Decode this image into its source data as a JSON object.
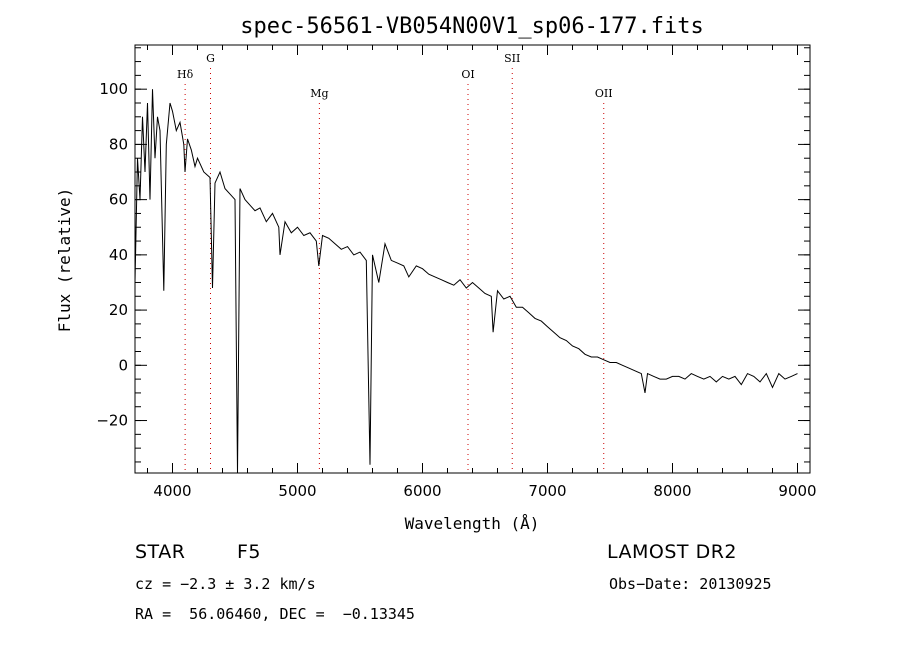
{
  "chart_data": {
    "type": "line",
    "title": "spec-56561-VB054N00V1_sp06-177.fits",
    "xlabel": "Wavelength (Å)",
    "ylabel": "Flux (relative)",
    "xlim": [
      3700,
      9100
    ],
    "ylim": [
      -39,
      116
    ],
    "x_ticks": [
      4000,
      5000,
      6000,
      7000,
      8000,
      9000
    ],
    "y_ticks": [
      -20,
      0,
      20,
      40,
      60,
      80,
      100
    ],
    "grid": false,
    "series": [
      {
        "x": [
          3700,
          3720,
          3740,
          3760,
          3780,
          3800,
          3820,
          3840,
          3860,
          3880,
          3900,
          3930,
          3950,
          3980,
          4000,
          4030,
          4060,
          4090,
          4100,
          4120,
          4150,
          4180,
          4200,
          4250,
          4300,
          4320,
          4340,
          4380,
          4420,
          4460,
          4500,
          4520,
          4540,
          4580,
          4620,
          4660,
          4700,
          4750,
          4800,
          4850,
          4860,
          4900,
          4950,
          5000,
          5050,
          5100,
          5150,
          5170,
          5200,
          5250,
          5300,
          5350,
          5400,
          5450,
          5500,
          5550,
          5580,
          5600,
          5650,
          5700,
          5750,
          5800,
          5850,
          5890,
          5950,
          6000,
          6050,
          6100,
          6150,
          6200,
          6250,
          6300,
          6350,
          6400,
          6450,
          6500,
          6550,
          6565,
          6600,
          6650,
          6700,
          6750,
          6800,
          6850,
          6900,
          6950,
          7000,
          7050,
          7100,
          7150,
          7200,
          7250,
          7300,
          7350,
          7400,
          7450,
          7500,
          7550,
          7600,
          7650,
          7700,
          7750,
          7780,
          7800,
          7850,
          7900,
          7950,
          8000,
          8050,
          8100,
          8150,
          8200,
          8250,
          8300,
          8350,
          8400,
          8450,
          8500,
          8550,
          8600,
          8650,
          8700,
          8750,
          8800,
          8850,
          8900,
          8950,
          9000
        ],
        "values": [
          30,
          75,
          60,
          90,
          70,
          95,
          60,
          100,
          75,
          90,
          85,
          27,
          80,
          95,
          92,
          85,
          88,
          80,
          70,
          82,
          78,
          72,
          75,
          70,
          68,
          28,
          66,
          70,
          64,
          62,
          60,
          -39,
          64,
          60,
          58,
          56,
          57,
          52,
          55,
          50,
          40,
          52,
          48,
          50,
          47,
          48,
          45,
          36,
          47,
          46,
          44,
          42,
          43,
          40,
          41,
          38,
          -36,
          40,
          30,
          44,
          38,
          37,
          36,
          32,
          36,
          35,
          33,
          32,
          31,
          30,
          29,
          31,
          28,
          30,
          28,
          26,
          25,
          12,
          27,
          24,
          25,
          21,
          21,
          19,
          17,
          16,
          14,
          12,
          10,
          9,
          7,
          6,
          4,
          3,
          3,
          2,
          1,
          1,
          0,
          -1,
          -2,
          -3,
          -10,
          -3,
          -4,
          -5,
          -5,
          -4,
          -4,
          -5,
          -3,
          -4,
          -5,
          -4,
          -6,
          -4,
          -5,
          -4,
          -7,
          -3,
          -4,
          -6,
          -3,
          -8,
          -3,
          -5,
          -4,
          -3
        ]
      }
    ],
    "annotations": [
      {
        "label": "Hδ",
        "x": 4101,
        "tier": "middle"
      },
      {
        "label": "G",
        "x": 4304,
        "tier": "top"
      },
      {
        "label": "Mg",
        "x": 5175,
        "tier": "low"
      },
      {
        "label": "OI",
        "x": 6364,
        "tier": "middle"
      },
      {
        "label": "SII",
        "x": 6718,
        "tier": "top"
      },
      {
        "label": "OII",
        "x": 7450,
        "tier": "low"
      }
    ],
    "colors": {
      "spectrum": "#000000",
      "marker_lines": "#cc0000",
      "axes": "#000000"
    }
  },
  "info": {
    "object_class": "STAR",
    "subclass": "F5",
    "survey": "LAMOST DR2",
    "redshift_line": "cz = −2.3 ± 3.2 km/s",
    "obs_date": "Obs−Date: 20130925",
    "coords": "RA =  56.06460, DEC =  −0.13345"
  }
}
